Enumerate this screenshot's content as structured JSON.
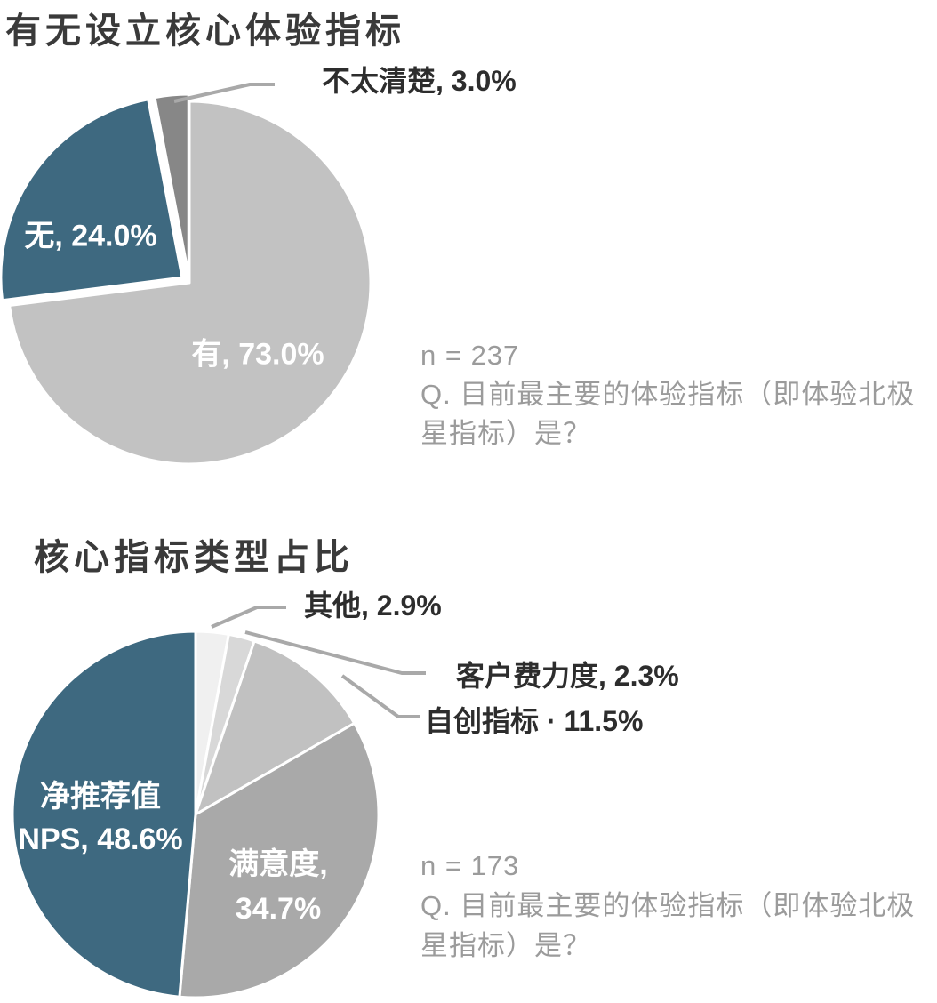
{
  "page": {
    "background": "#ffffff",
    "accent_blue": "#3e6980",
    "leader_line_color": "#a9a9a9",
    "note_text_color": "#9b9b9b"
  },
  "chart_data": [
    {
      "type": "pie",
      "title": "有无设立核心体验指标",
      "n_note": "n = 237",
      "question": "Q. 目前最主要的体验指标（即体验北极星指标）是？",
      "question_lines": [
        "Q. 目前最主要的体验指标（即体验北极",
        "星指标）是？"
      ],
      "start_angle_deg": 0,
      "direction": "clockwise",
      "legend": "none",
      "slices": [
        {
          "label": "有",
          "value": 73.0,
          "display": "有, 73.0%",
          "color": "#c2c2c2",
          "explode": 0
        },
        {
          "label": "无",
          "value": 24.0,
          "display": "无, 24.0%",
          "color": "#3e6980",
          "explode": 10
        },
        {
          "label": "不太清楚",
          "value": 3.0,
          "display": "不太清楚, 3.0%",
          "color": "#878787",
          "explode": 8
        }
      ]
    },
    {
      "type": "pie",
      "title": "核心指标类型占比",
      "n_note": "n = 173",
      "question": "Q. 目前最主要的体验指标（即体验北极星指标）是？",
      "question_lines": [
        "Q. 目前最主要的体验指标（即体验北极",
        "星指标）是？"
      ],
      "start_angle_deg": 0,
      "direction": "clockwise",
      "legend": "none",
      "slices": [
        {
          "label": "其他",
          "value": 2.9,
          "display": "其他, 2.9%",
          "color": "#f0f0f0",
          "explode": 0
        },
        {
          "label": "客户费力度",
          "value": 2.3,
          "display": "客户费力度, 2.3%",
          "color": "#d8d8d8",
          "explode": 0
        },
        {
          "label": "自创指标",
          "value": 11.5,
          "display": "自创指标 · 11.5%",
          "color": "#c1c1c1",
          "explode": 0
        },
        {
          "label": "满意度",
          "value": 34.7,
          "display": "满意度, 34.7%",
          "display_lines": [
            "满意度,",
            "34.7%"
          ],
          "color": "#a9a9a9",
          "explode": 0
        },
        {
          "label": "净推荐值NPS",
          "value": 48.6,
          "display": "净推荐值 NPS, 48.6%",
          "display_lines": [
            "净推荐值",
            "NPS, 48.6%"
          ],
          "color": "#3e6980",
          "explode": 0
        }
      ]
    }
  ]
}
